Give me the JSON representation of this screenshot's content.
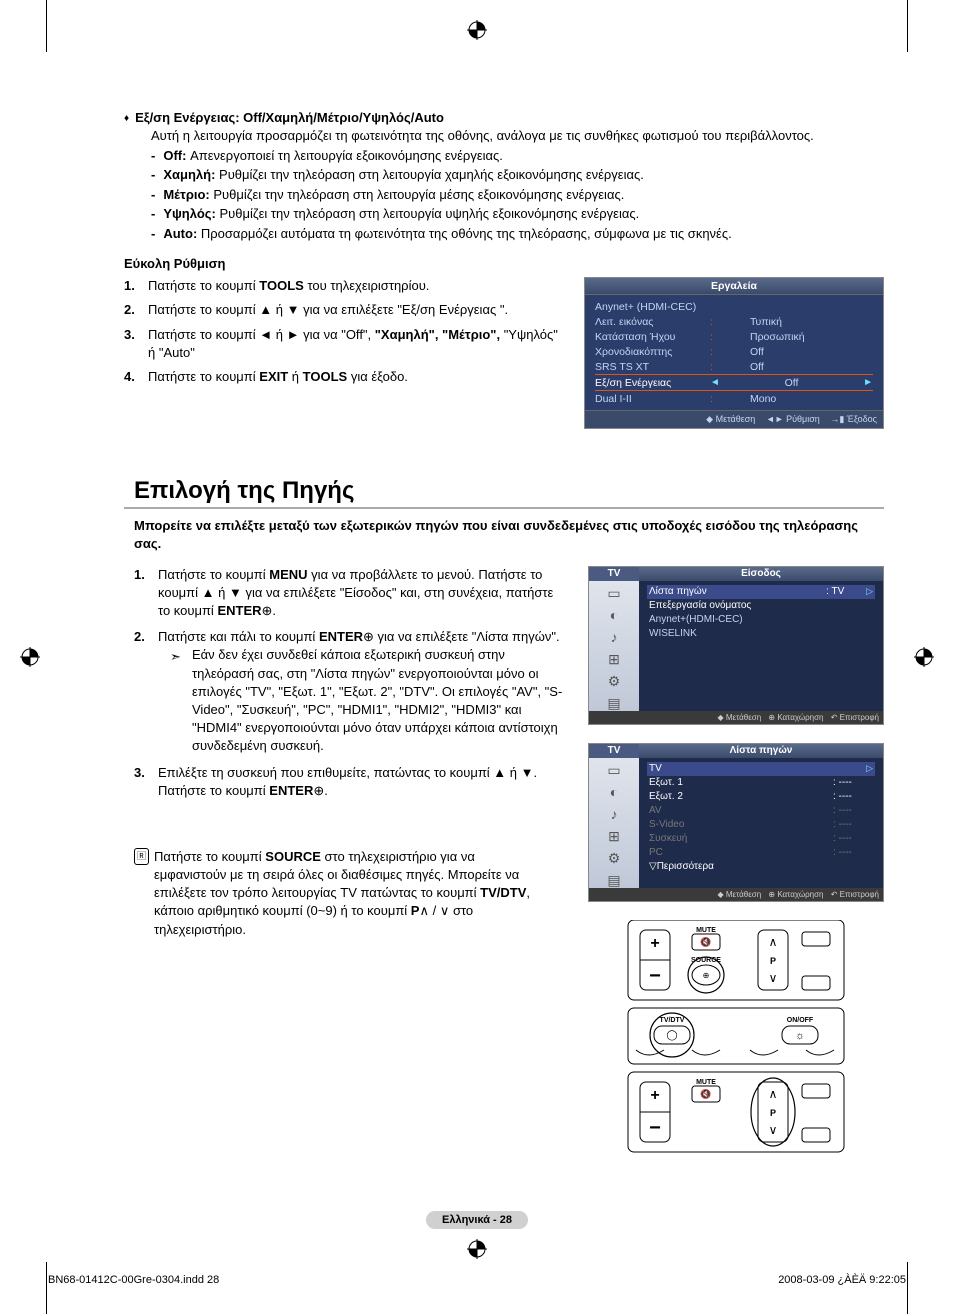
{
  "section1": {
    "bullet_title": "Εξ/ση Ενέργειας: Off/Χαμηλή/Μέτριο/Υψηλός/Auto",
    "desc": "Αυτή η λειτουργία προσαρμόζει τη φωτεινότητα της οθόνης, ανάλογα με τις συνθήκες φωτισμού του περιβάλλοντος.",
    "items": [
      {
        "label": "Off:",
        "text": " Απενεργοποιεί τη λειτουργία εξοικονόμησης ενέργειας."
      },
      {
        "label": "Χαμηλή:",
        "text": " Ρυθμίζει την τηλεόραση στη λειτουργία χαμηλής εξοικονόμησης ενέργειας."
      },
      {
        "label": "Μέτριο:",
        "text": " Ρυθμίζει την τηλεόραση στη λειτουργία μέσης εξοικονόμησης ενέργειας."
      },
      {
        "label": "Υψηλός:",
        "text": " Ρυθμίζει την τηλεόραση στη λειτουργία υψηλής εξοικονόμησης ενέργειας."
      },
      {
        "label": "Auto:",
        "text": " Προσαρμόζει αυτόματα τη φωτεινότητα της οθόνης της τηλεόρασης, σύμφωνα με τις σκηνές."
      }
    ]
  },
  "easy_setup": {
    "title": "Εύκολη Ρύθμιση",
    "steps": [
      "Πατήστε το κουμπί <b>TOOLS</b> του τηλεχειριστηρίου.",
      "Πατήστε το κουμπί ▲ ή ▼ για να επιλέξετε \"Εξ/ση Ενέργειας \".",
      "Πατήστε το κουμπί ◄ ή ► για να \"Off\", <b>\"Χαμηλή\", \"Μέτριο\",</b> \"Υψηλός\" ή \"Auto\"",
      "Πατήστε το κουμπί <b>EXIT</b> ή <b>TOOLS</b> για έξοδο."
    ]
  },
  "tools_menu": {
    "header": "Εργαλεία",
    "rows": [
      {
        "label": "Anynet+ (HDMI-CEC)",
        "colon": "",
        "val": ""
      },
      {
        "label": "Λειτ. εικόνας",
        "colon": ":",
        "val": "Τυπική"
      },
      {
        "label": "Κατάσταση Ήχου",
        "colon": ":",
        "val": "Προσωπική"
      },
      {
        "label": "Χρονοδιακόπτης",
        "colon": ":",
        "val": "Off"
      },
      {
        "label": "SRS TS XT",
        "colon": ":",
        "val": "Off"
      },
      {
        "label": "Εξ/ση Ενέργειας",
        "colon": "",
        "val": "Off",
        "selected": true
      },
      {
        "label": "Dual I-II",
        "colon": ":",
        "val": "Mono"
      }
    ],
    "footer": {
      "a": "◆ Μετάθεση",
      "b": "◄► Ρύθμιση",
      "c": "→▮ Έξοδος"
    }
  },
  "source_section": {
    "title": "Επιλογή της Πηγής",
    "intro": "Μπορείτε να επιλέξτε μεταξύ των εξωτερικών πηγών που είναι συνδεδεμένες στις υποδοχές εισόδου της τηλεόρασης σας.",
    "steps": [
      "Πατήστε το κουμπί <b>MENU</b> για να προβάλλετε το μενού. Πατήστε το κουμπί ▲ ή ▼ για να επιλέξετε \"Είσοδος\" και, στη συνέχεια, πατήστε το κουμπί <b>ENTER</b>⊕.",
      "Πατήστε και πάλι το κουμπί <b>ENTER</b>⊕ για να επιλέξετε \"Λίστα πηγών\".",
      "Επιλέξτε τη συσκευή που επιθυμείτε, πατώντας το κουμπί ▲ ή ▼. Πατήστε το κουμπί <b>ENTER</b>⊕."
    ],
    "note": "Εάν δεν έχει συνδεθεί κάποια εξωτερική συσκευή στην τηλεόρασή σας, στη \"Λίστα πηγών\" ενεργοποιούνται μόνο οι επιλογές \"TV\", \"Εξωτ. 1\", \"Εξωτ. 2\", \"DTV\". Οι επιλογές \"AV\", \"S-Video\", \"Συσκευή\", \"PC\", \"HDMI1\", \"HDMI2\", \"HDMI3\" και \"HDMI4\" ενεργοποιούνται μόνο όταν υπάρχει κάποια αντίστοιχη συνδεδεμένη συσκευή.",
    "remote_note": "Πατήστε το κουμπί <b>SOURCE</b> στο τηλεχειριστήριο για να εμφανιστούν με τη σειρά όλες οι διαθέσιμες πηγές. Μπορείτε να επιλέξετε τον τρόπο λειτουργίας TV πατώντας το κουμπί <b>TV/DTV</b>, κάποιο αριθμητικό κουμπί (0~9) ή το κουμπί <b>P</b>∧ / ∨ στο τηλεχειριστήριο."
  },
  "osd1": {
    "tv": "TV",
    "title": "Είσοδος",
    "items": [
      {
        "label": "Λίστα πηγών",
        "val": ": TV",
        "sel": true
      },
      {
        "label": "Επεξεργασία ονόματος",
        "val": ""
      },
      {
        "label": "Anynet+(HDMI-CEC)",
        "val": ""
      },
      {
        "label": "WISELINK",
        "val": ""
      }
    ],
    "footer": {
      "a": "◆ Μετάθεση",
      "b": "⊕ Καταχώρηση",
      "c": "↶ Επιστροφή"
    }
  },
  "osd2": {
    "tv": "TV",
    "title": "Λίστα πηγών",
    "items": [
      {
        "label": "TV",
        "val": "",
        "sel": true
      },
      {
        "label": "Εξωτ. 1",
        "val": ": ----"
      },
      {
        "label": "Εξωτ. 2",
        "val": ": ----"
      },
      {
        "label": "AV",
        "val": ": ----"
      },
      {
        "label": "S-Video",
        "val": ": ----"
      },
      {
        "label": "Συσκευή",
        "val": ": ----"
      },
      {
        "label": "PC",
        "val": ": ----"
      },
      {
        "label": "▽Περισσότερα",
        "val": ""
      }
    ],
    "footer": {
      "a": "◆ Μετάθεση",
      "b": "⊕ Καταχώρηση",
      "c": "↶ Επιστροφή"
    }
  },
  "remote": {
    "mute": "MUTE",
    "source": "SOURCE",
    "p": "P",
    "tvdtv": "TV/DTV",
    "onoff": "ON/OFF"
  },
  "footer": {
    "pill": "Ελληνικά - 28",
    "left": "BN68-01412C-00Gre-0304.indd   28",
    "right": "2008-03-09   ¿ÀÈÄ 9:22:05"
  },
  "colors": {
    "menu_bg": "#2a3d6b",
    "menu_sel_border": "#d51",
    "pill_bg": "#d0d0d0"
  }
}
